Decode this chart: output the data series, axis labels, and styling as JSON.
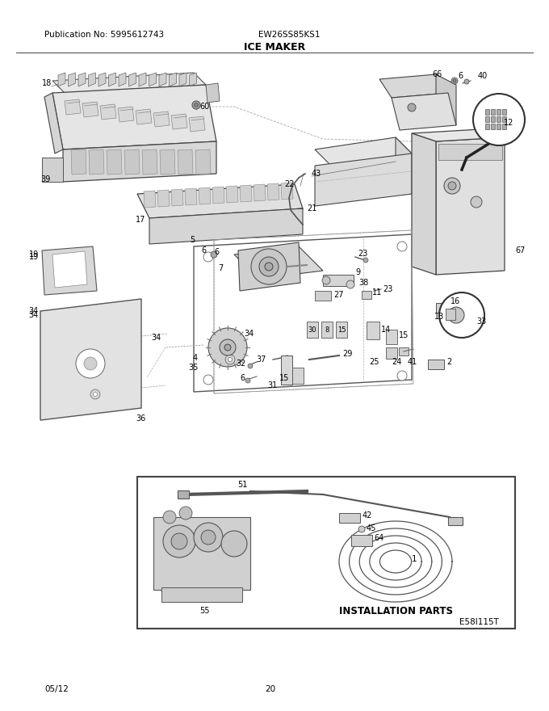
{
  "title": "ICE MAKER",
  "pub_no": "Publication No: 5995612743",
  "model": "EW26SS85KS1",
  "date": "05/12",
  "page": "20",
  "diagram_code": "E58I115T",
  "background": "#ffffff",
  "text_color": "#000000",
  "install_box_label": "INSTALLATION PARTS",
  "fig_width": 6.8,
  "fig_height": 8.8,
  "dpi": 100
}
